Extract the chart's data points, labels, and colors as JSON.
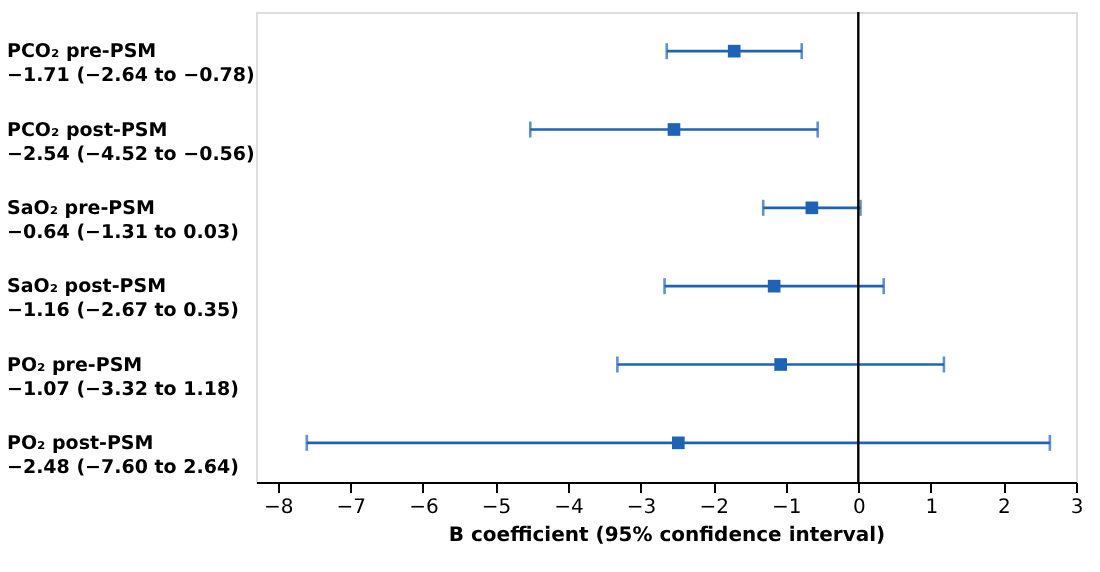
{
  "chart_data": {
    "type": "scatter",
    "orientation": "horizontal",
    "categories": [
      "PCO₂ pre-PSM\n−1.71 (−2.64 to −0.78)",
      "PCO₂ post-PSM\n−2.54 (−4.52 to −0.56)",
      "SaO₂ pre-PSM\n−0.64 (−1.31 to 0.03)",
      "SaO₂ post-PSM\n−1.16 (−2.67 to 0.35)",
      "PO₂ pre-PSM\n−1.07 (−3.32 to 1.18)",
      "PO₂ post-PSM\n−2.48 (−7.60 to 2.64)"
    ],
    "series": [
      {
        "color": "#1f63b5",
        "values": [
          -1.71,
          -2.54,
          -0.64,
          -1.16,
          -1.07,
          -2.48
        ],
        "errors": [
          [
            -2.64,
            -0.78
          ],
          [
            -4.52,
            -0.56
          ],
          [
            -1.31,
            0.03
          ],
          [
            -2.67,
            0.35
          ],
          [
            -3.32,
            1.18
          ],
          [
            -7.6,
            2.64
          ]
        ]
      }
    ],
    "xlabel": "B coefficient (95% confidence interval)",
    "xlim": [
      -8.3,
      3
    ],
    "xticks": [
      -8,
      -7,
      -6,
      -5,
      -4,
      -3,
      -2,
      -1,
      0,
      1,
      2,
      3
    ],
    "ref_lines": [
      {
        "axis": "x",
        "value": 0,
        "color": "#000000"
      }
    ],
    "marker": "square",
    "grid": false
  }
}
